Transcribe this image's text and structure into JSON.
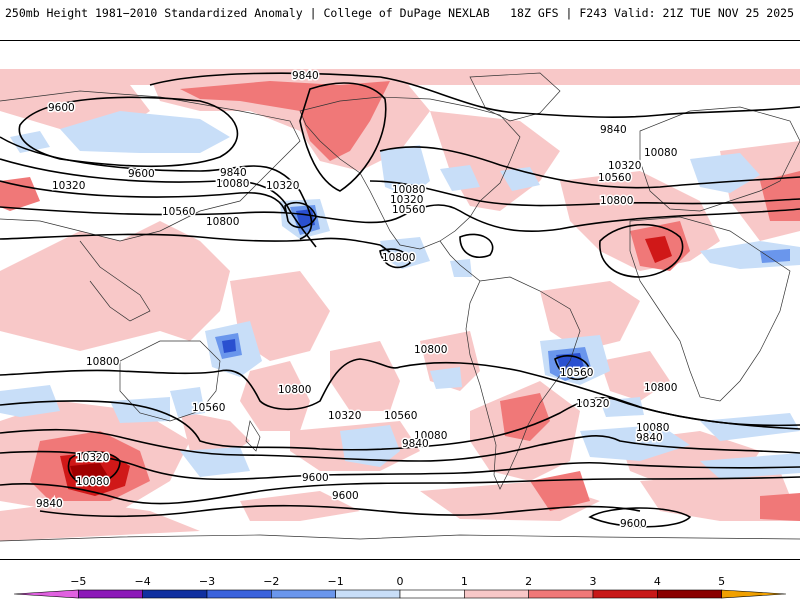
{
  "header": {
    "left_title": "250mb Height 1981−2010 Standardized Anomaly | College of DuPage NEXLAB",
    "right_title": "18Z GFS | F243 Valid: 21Z TUE NOV 25 2025"
  },
  "contour_labels": {
    "l9840_np": "9840",
    "l9600_w": "9600",
    "l9600_aleu": "9600",
    "l9840_pac": "9840",
    "l10080_pac": "10080",
    "l10320_asia": "10320",
    "l10320_pac": "10320",
    "l10560_pac": "10560",
    "l10800_pac": "10800",
    "l10080_us": "10080",
    "l10320_us": "10320",
    "l10560_us": "10560",
    "l10800_cpac": "10800",
    "l9840_atl": "9840",
    "l10080_eur": "10080",
    "l10320_atl": "10320",
    "l10560_atl": "10560",
    "l10800_afr": "10800",
    "l10800_sio": "10800",
    "l10800_spac": "10800",
    "l10800_sam": "10800",
    "l10560_aus": "10560",
    "l10320_saus": "10320",
    "l10560_spac": "10560",
    "l10560_sam": "10560",
    "l10320_sam": "10320",
    "l10800_satl": "10800",
    "l10080_spac": "10080",
    "l9840_spac": "9840",
    "l10080_satl": "10080",
    "l9840_satl": "9840",
    "l10320_sio": "10320",
    "l10080_sio": "10080",
    "l9840_sio": "9840",
    "l9600_spac": "9600",
    "l9600_spac2": "9600",
    "l9600_satl": "9600"
  },
  "colorbar": {
    "ticks": [
      "−5",
      "−4",
      "−3",
      "−2",
      "−1",
      "0",
      "1",
      "2",
      "3",
      "4",
      "5"
    ],
    "colors": [
      "#e060e0",
      "#8c18b8",
      "#1030a0",
      "#3a62dc",
      "#6a96ec",
      "#c8def8",
      "#ffffff",
      "#f8c8c8",
      "#f07878",
      "#c81818",
      "#8a0000",
      "#f0a000"
    ]
  },
  "legend_colors": {
    "neg3": "#2a50d0",
    "neg2": "#6a96ec",
    "neg1": "#c8def8",
    "pos1": "#f8c8c8",
    "pos2": "#f07878",
    "pos3": "#d01818",
    "pos4": "#a00000"
  }
}
